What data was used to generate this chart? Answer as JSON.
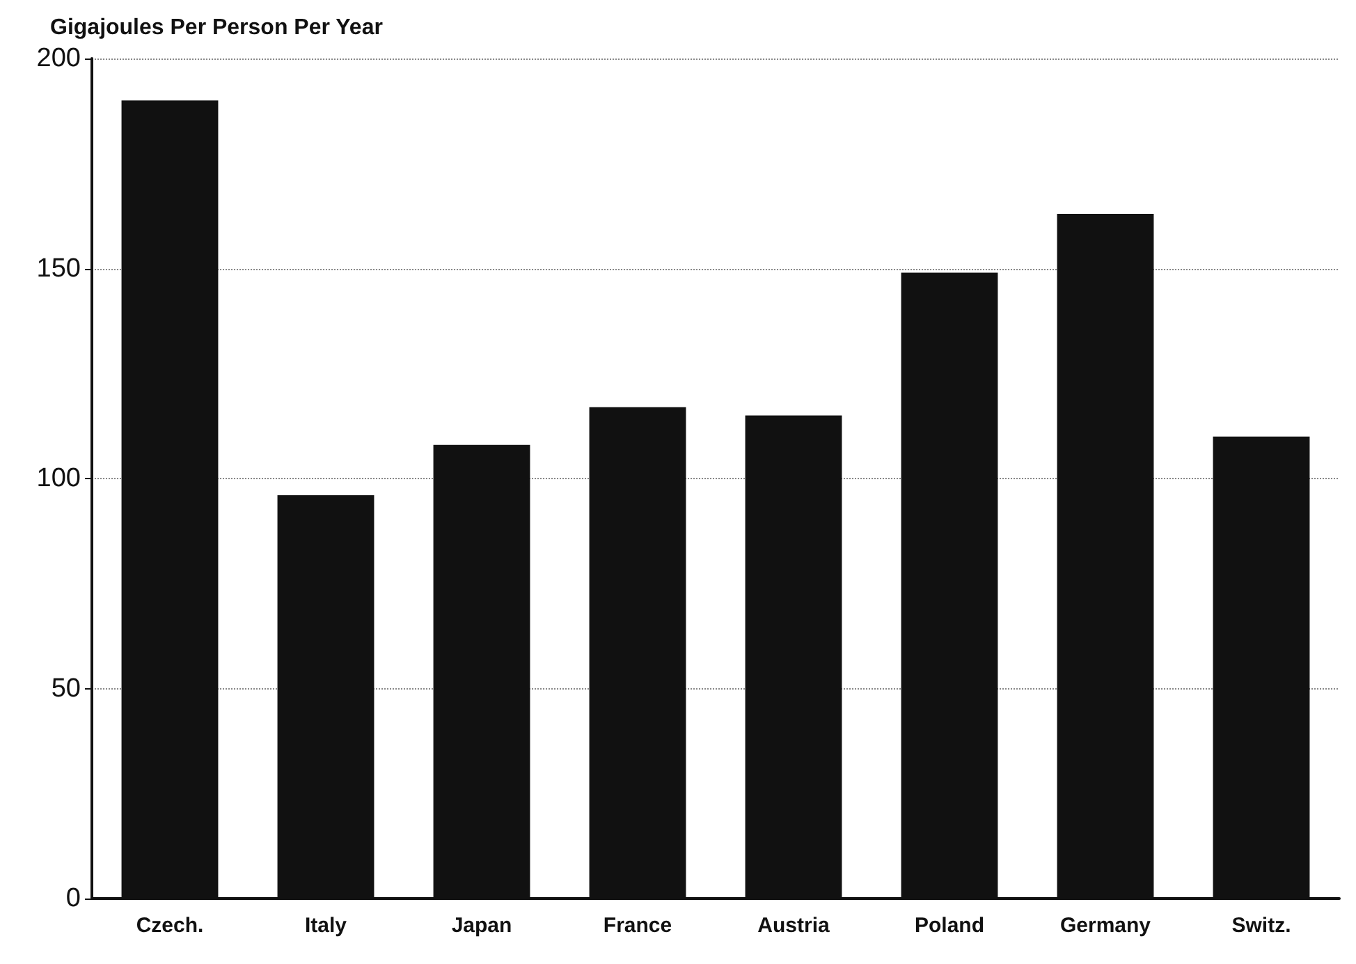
{
  "chart_data": {
    "type": "bar",
    "ylabel": "Gigajoules Per Person Per Year",
    "categories": [
      "Czech.",
      "Italy",
      "Japan",
      "France",
      "Austria",
      "Poland",
      "Germany",
      "Switz."
    ],
    "values": [
      190,
      96,
      108,
      117,
      115,
      149,
      163,
      110
    ],
    "color": "#111111",
    "ylim": [
      0,
      200
    ],
    "yticks": [
      0,
      50,
      100,
      150,
      200
    ],
    "grid": "y"
  }
}
